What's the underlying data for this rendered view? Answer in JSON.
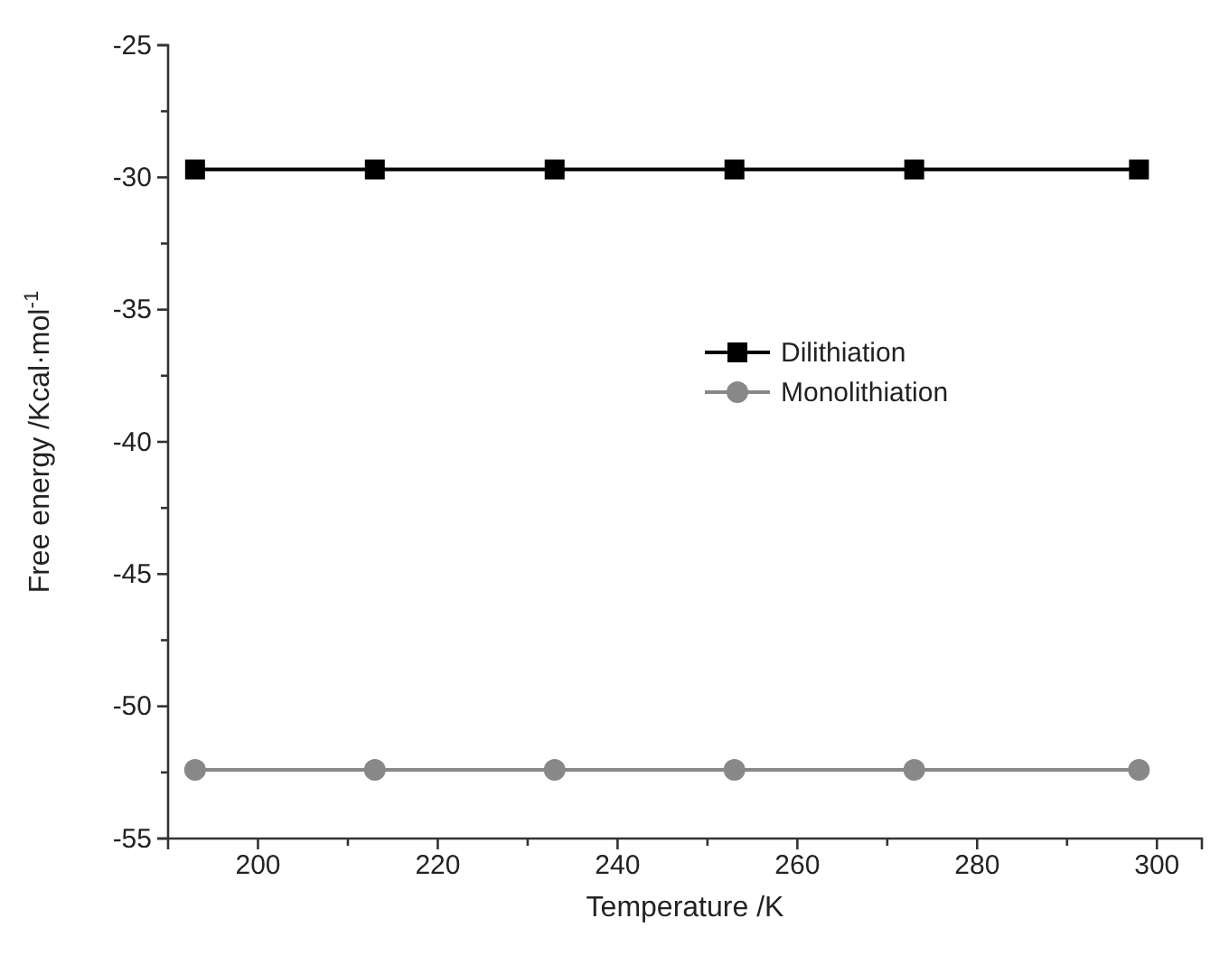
{
  "chart_data": {
    "type": "line",
    "xlabel": "Temperature /K",
    "ylabel": "Free energy /Kcal·mol$^{-1}$",
    "x": [
      193,
      213,
      233,
      253,
      273,
      298
    ],
    "series": [
      {
        "name": "Dilithiation",
        "color": "#000000",
        "marker": "square",
        "values": [
          -29.7,
          -29.7,
          -29.7,
          -29.7,
          -29.7,
          -29.7
        ]
      },
      {
        "name": "Monolithiation",
        "color": "#888888",
        "marker": "circle",
        "values": [
          -52.4,
          -52.4,
          -52.4,
          -52.4,
          -52.4,
          -52.4
        ]
      }
    ],
    "xlim": [
      190,
      305
    ],
    "xticks": [
      200,
      {
        "value": 210,
        "label": null
      },
      220,
      {
        "value": 230,
        "label": null
      },
      240,
      {
        "value": 250,
        "label": null
      },
      260,
      {
        "value": 270,
        "label": null
      },
      280,
      {
        "value": 290,
        "label": null
      },
      300
    ],
    "ylim": [
      -55,
      -25
    ],
    "yticks": [
      -55,
      {
        "value": -52.5,
        "label": null
      },
      -50,
      {
        "value": -47.5,
        "label": null
      },
      -45,
      {
        "value": -42.5,
        "label": null
      },
      -40,
      {
        "value": -37.5,
        "label": null
      },
      -35,
      {
        "value": -32.5,
        "label": null
      },
      -30,
      {
        "value": -27.5,
        "label": null
      },
      -25
    ],
    "legend": "right",
    "grid": false,
    "line_style": "solid"
  }
}
